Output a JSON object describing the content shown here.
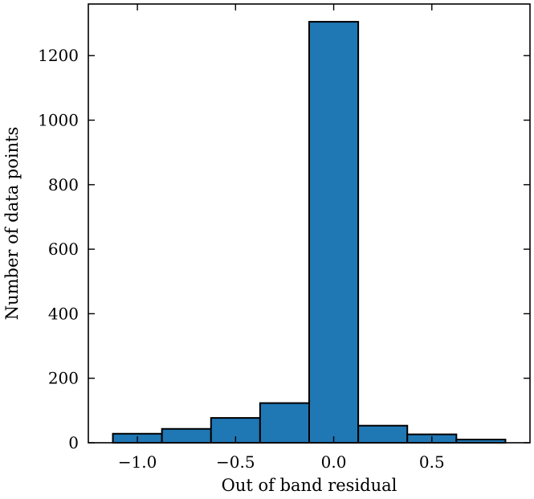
{
  "chart_data": {
    "type": "bar",
    "subtype": "histogram",
    "xlabel": "Out of band residual",
    "ylabel": "Number of data points",
    "xlim": [
      -1.25,
      1.0
    ],
    "ylim": [
      0,
      1360
    ],
    "x_ticks": [
      {
        "value": -1.0,
        "label": "−1.0"
      },
      {
        "value": -0.5,
        "label": "−0.5"
      },
      {
        "value": 0.0,
        "label": "0.0"
      },
      {
        "value": 0.5,
        "label": "0.5"
      }
    ],
    "y_ticks": [
      {
        "value": 0,
        "label": "0"
      },
      {
        "value": 200,
        "label": "200"
      },
      {
        "value": 400,
        "label": "400"
      },
      {
        "value": 600,
        "label": "600"
      },
      {
        "value": 800,
        "label": "800"
      },
      {
        "value": 1000,
        "label": "1000"
      },
      {
        "value": 1200,
        "label": "1200"
      }
    ],
    "bins": [
      {
        "x0": -1.125,
        "x1": -0.875,
        "count": 28
      },
      {
        "x0": -0.875,
        "x1": -0.625,
        "count": 43
      },
      {
        "x0": -0.625,
        "x1": -0.375,
        "count": 77
      },
      {
        "x0": -0.375,
        "x1": -0.125,
        "count": 123
      },
      {
        "x0": -0.125,
        "x1": 0.125,
        "count": 1305
      },
      {
        "x0": 0.125,
        "x1": 0.375,
        "count": 53
      },
      {
        "x0": 0.375,
        "x1": 0.625,
        "count": 26
      },
      {
        "x0": 0.625,
        "x1": 0.875,
        "count": 10
      }
    ],
    "bar_color": "#1f77b4",
    "grid": false,
    "tick_direction": "in"
  }
}
